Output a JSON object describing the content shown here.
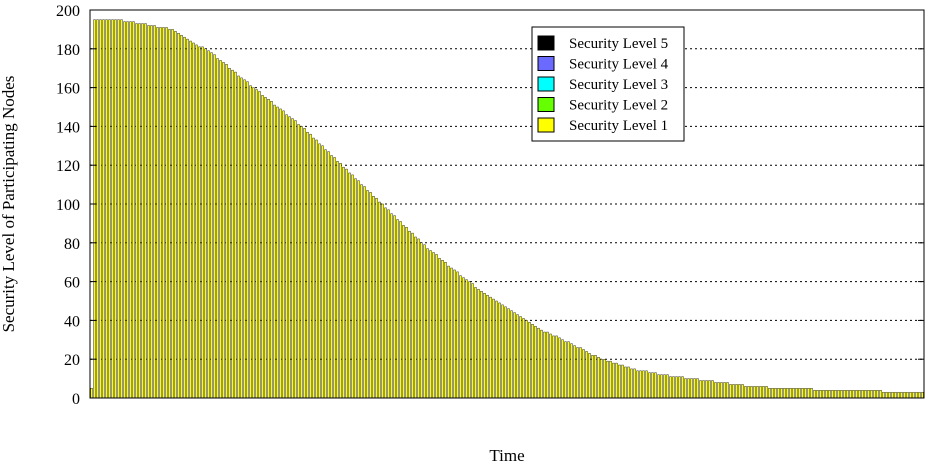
{
  "chart_data": {
    "type": "bar",
    "stacked": true,
    "xlabel": "Time",
    "ylabel": "Security Level of Participating Nodes",
    "ylim": [
      0,
      200
    ],
    "yticks": [
      0,
      20,
      40,
      60,
      80,
      100,
      120,
      140,
      160,
      180,
      200
    ],
    "grid": "horizontal dotted",
    "legend_position": "top-right",
    "bar_count": 278,
    "series": [
      {
        "name": "Security Level 5",
        "color": "#000000"
      },
      {
        "name": "Security Level 4",
        "color": "#6a6aff"
      },
      {
        "name": "Security Level 3",
        "color": "#00ffff"
      },
      {
        "name": "Security Level 2",
        "color": "#66ff00"
      },
      {
        "name": "Security Level 1",
        "color": "#ffff00"
      }
    ],
    "profile": [
      [
        0,
        5
      ],
      [
        1,
        195
      ],
      [
        8,
        195
      ],
      [
        20,
        192
      ],
      [
        27,
        190
      ],
      [
        31,
        186
      ],
      [
        34,
        183
      ],
      [
        40,
        178
      ],
      [
        50,
        165
      ],
      [
        62,
        150
      ],
      [
        70,
        140
      ],
      [
        80,
        125
      ],
      [
        90,
        110
      ],
      [
        100,
        95
      ],
      [
        110,
        80
      ],
      [
        120,
        67
      ],
      [
        130,
        55
      ],
      [
        140,
        45
      ],
      [
        150,
        35
      ],
      [
        160,
        28
      ],
      [
        170,
        20
      ],
      [
        180,
        15
      ],
      [
        190,
        12
      ],
      [
        200,
        10
      ],
      [
        210,
        8
      ],
      [
        220,
        6
      ],
      [
        230,
        5
      ],
      [
        250,
        4
      ],
      [
        277,
        3
      ]
    ]
  }
}
